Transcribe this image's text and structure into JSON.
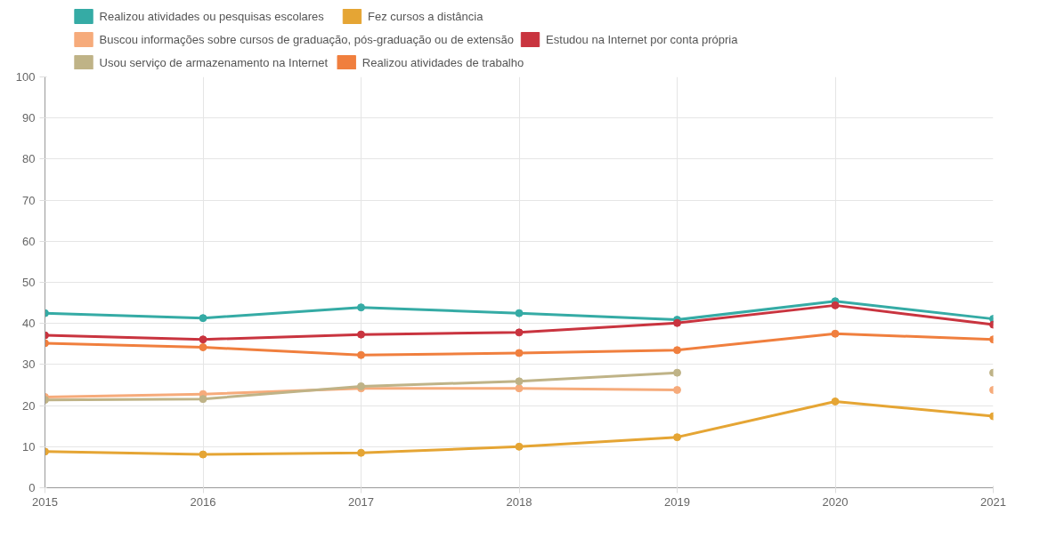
{
  "chart_data": {
    "type": "line",
    "x": [
      2015,
      2016,
      2017,
      2018,
      2019,
      2020,
      2021
    ],
    "series": [
      {
        "name": "Realizou atividades ou pesquisas escolares",
        "color": "#35aba5",
        "values": [
          42.5,
          41.3,
          43.9,
          42.5,
          40.9,
          45.4,
          41.1
        ]
      },
      {
        "name": "Fez cursos a distância",
        "color": "#e5a534",
        "values": [
          8.8,
          8.1,
          8.5,
          10.0,
          12.3,
          21.0,
          17.4
        ]
      },
      {
        "name": "Buscou informações sobre cursos de graduação, pós-graduação ou de extensão",
        "color": "#f6ab7b",
        "values": [
          22.1,
          22.8,
          24.2,
          24.2,
          23.8,
          null,
          23.8
        ]
      },
      {
        "name": "Estudou na Internet por conta própria",
        "color": "#c9343f",
        "values": [
          37.1,
          36.1,
          37.3,
          37.8,
          40.1,
          44.4,
          39.7
        ]
      },
      {
        "name": "Usou serviço de armazenamento na Internet",
        "color": "#bfb387",
        "values": [
          21.4,
          21.6,
          24.7,
          25.9,
          28.0,
          null,
          28.0
        ]
      },
      {
        "name": "Realizou atividades de trabalho",
        "color": "#f07f3e",
        "values": [
          35.2,
          34.2,
          32.3,
          32.8,
          33.5,
          37.5,
          36.1
        ]
      }
    ],
    "xlim": [
      2015,
      2021
    ],
    "xticks": [
      2015,
      2016,
      2017,
      2018,
      2019,
      2020,
      2021
    ],
    "ylim": [
      0,
      100
    ],
    "yticks": [
      0,
      10,
      20,
      30,
      40,
      50,
      60,
      70,
      80,
      90,
      100
    ],
    "grid": true,
    "legend": "top",
    "marker": "circle",
    "line_style": "solid"
  }
}
